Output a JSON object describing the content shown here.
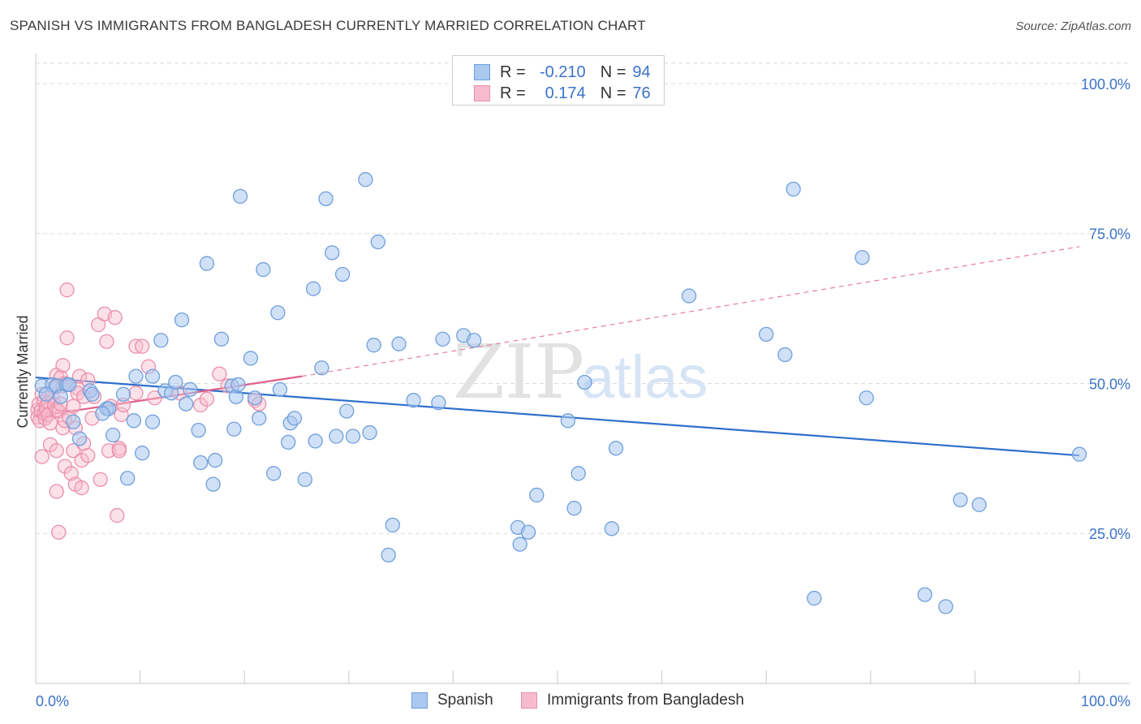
{
  "title": "SPANISH VS IMMIGRANTS FROM BANGLADESH CURRENTLY MARRIED CORRELATION CHART",
  "source": "Source: ZipAtlas.com",
  "watermark": {
    "part1": "ZIP",
    "part2": "atlas"
  },
  "colors": {
    "blue_fill": "#aac8f0",
    "blue_stroke": "#6f9fdc",
    "blue_line": "#2f6fcc",
    "pink_fill": "#f6bccd",
    "pink_stroke": "#ec8faa",
    "pink_line": "#e0608a",
    "axis_text": "#3b73c8",
    "grid": "#dadada"
  },
  "legend": {
    "rows": [
      {
        "r_label": "R =",
        "r_value": "-0.210",
        "n_label": "N =",
        "n_value": "94"
      },
      {
        "r_label": "R =",
        "r_value": "0.174",
        "n_label": "N =",
        "n_value": "76"
      }
    ]
  },
  "chart_data": {
    "type": "scatter",
    "title": "SPANISH VS IMMIGRANTS FROM BANGLADESH CURRENTLY MARRIED CORRELATION CHART",
    "xlabel": "",
    "ylabel": "Currently Married",
    "xlim": [
      0,
      100
    ],
    "ylim": [
      0,
      105
    ],
    "x_tick_labels": [
      "0.0%",
      "100.0%"
    ],
    "y_ticks": [
      25,
      50,
      75,
      100
    ],
    "y_tick_labels": [
      "25.0%",
      "50.0%",
      "75.0%",
      "100.0%"
    ],
    "grid": true,
    "legend_position": "top-center",
    "series": [
      {
        "name": "Spanish",
        "color": "#aac8f0",
        "r": -0.21,
        "n": 94,
        "trend": {
          "x": [
            0,
            100
          ],
          "y": [
            51.0,
            38.0
          ],
          "dashed_x": null
        },
        "points": [
          [
            0.6,
            49.6
          ],
          [
            1.6,
            49.8
          ],
          [
            2,
            49.6
          ],
          [
            2.4,
            47.8
          ],
          [
            3,
            49.8
          ],
          [
            3.6,
            43.6
          ],
          [
            4.2,
            40.8
          ],
          [
            5.2,
            48.8
          ],
          [
            5.4,
            48.2
          ],
          [
            6.8,
            45.8
          ],
          [
            7,
            45.8
          ],
          [
            7.4,
            41.4
          ],
          [
            8.4,
            48.2
          ],
          [
            8.8,
            34.2
          ],
          [
            9.4,
            43.8
          ],
          [
            9.6,
            51.2
          ],
          [
            10.2,
            38.4
          ],
          [
            11.2,
            51.2
          ],
          [
            11.2,
            43.6
          ],
          [
            12,
            57.2
          ],
          [
            12.4,
            48.8
          ],
          [
            13,
            48.4
          ],
          [
            13.4,
            50.2
          ],
          [
            14,
            60.6
          ],
          [
            14.4,
            46.6
          ],
          [
            14.8,
            49.0
          ],
          [
            15.6,
            42.2
          ],
          [
            15.8,
            36.8
          ],
          [
            16.4,
            70.0
          ],
          [
            17,
            33.2
          ],
          [
            17.2,
            37.2
          ],
          [
            17.8,
            57.4
          ],
          [
            18.8,
            49.6
          ],
          [
            19,
            42.4
          ],
          [
            19.2,
            47.8
          ],
          [
            19.6,
            81.2
          ],
          [
            20.6,
            54.2
          ],
          [
            21.0,
            47.6
          ],
          [
            21.4,
            44.2
          ],
          [
            21.8,
            69.0
          ],
          [
            22.8,
            35.0
          ],
          [
            23.2,
            61.8
          ],
          [
            23.4,
            49.0
          ],
          [
            24.2,
            40.2
          ],
          [
            24.4,
            43.4
          ],
          [
            24.8,
            44.2
          ],
          [
            25.8,
            34.0
          ],
          [
            26.6,
            65.8
          ],
          [
            26.8,
            40.4
          ],
          [
            27.4,
            52.6
          ],
          [
            27.8,
            80.8
          ],
          [
            28.4,
            71.8
          ],
          [
            28.8,
            41.2
          ],
          [
            29.4,
            68.2
          ],
          [
            29.8,
            45.4
          ],
          [
            30.4,
            41.2
          ],
          [
            31.6,
            84.0
          ],
          [
            32.0,
            41.8
          ],
          [
            32.4,
            56.4
          ],
          [
            32.8,
            73.6
          ],
          [
            33.8,
            21.4
          ],
          [
            34.2,
            26.4
          ],
          [
            34.8,
            56.6
          ],
          [
            36.2,
            47.2
          ],
          [
            38.6,
            46.8
          ],
          [
            39,
            57.4
          ],
          [
            41,
            58.0
          ],
          [
            42.0,
            57.2
          ],
          [
            46.2,
            26.0
          ],
          [
            46.4,
            23.2
          ],
          [
            47.2,
            25.2
          ],
          [
            48.0,
            31.4
          ],
          [
            51,
            43.8
          ],
          [
            51.6,
            29.2
          ],
          [
            52,
            35.0
          ],
          [
            52.6,
            50.2
          ],
          [
            55.2,
            25.8
          ],
          [
            55.6,
            39.2
          ],
          [
            62.6,
            64.6
          ],
          [
            70,
            58.2
          ],
          [
            71.8,
            54.8
          ],
          [
            72.6,
            82.4
          ],
          [
            74.6,
            14.2
          ],
          [
            79.2,
            71.0
          ],
          [
            79.6,
            47.6
          ],
          [
            85.2,
            14.8
          ],
          [
            87.2,
            12.8
          ],
          [
            88.6,
            30.6
          ],
          [
            90.4,
            29.8
          ],
          [
            100,
            38.2
          ],
          [
            1.0,
            48.2
          ],
          [
            3.2,
            49.8
          ],
          [
            6.4,
            45.0
          ],
          [
            19.4,
            49.8
          ]
        ]
      },
      {
        "name": "Immigrants from Bangladesh",
        "color": "#f6bccd",
        "r": 0.174,
        "n": 76,
        "trend": {
          "x": [
            0,
            25.5
          ],
          "y": [
            44.5,
            51.2
          ],
          "dashed_x": [
            25.5,
            100
          ],
          "dashed_y": [
            51.2,
            72.8
          ]
        },
        "points": [
          [
            0.2,
            45.6
          ],
          [
            0.2,
            44.4
          ],
          [
            0.3,
            46.6
          ],
          [
            0.4,
            43.8
          ],
          [
            0.5,
            45.4
          ],
          [
            0.6,
            48.2
          ],
          [
            0.6,
            37.8
          ],
          [
            0.8,
            47.0
          ],
          [
            0.8,
            45.0
          ],
          [
            0.9,
            44.2
          ],
          [
            1.0,
            46.2
          ],
          [
            1.0,
            45.6
          ],
          [
            1.2,
            46.8
          ],
          [
            1.2,
            44.8
          ],
          [
            1.4,
            39.8
          ],
          [
            1.4,
            43.4
          ],
          [
            1.6,
            48.0
          ],
          [
            1.8,
            46.4
          ],
          [
            1.8,
            49.4
          ],
          [
            2.0,
            51.4
          ],
          [
            2.0,
            45.6
          ],
          [
            2.0,
            38.8
          ],
          [
            2.0,
            32.0
          ],
          [
            2.2,
            45.4
          ],
          [
            2.2,
            25.2
          ],
          [
            2.4,
            51.0
          ],
          [
            2.4,
            46.6
          ],
          [
            2.6,
            53.0
          ],
          [
            2.6,
            49.6
          ],
          [
            2.6,
            42.6
          ],
          [
            2.8,
            36.2
          ],
          [
            2.8,
            50.0
          ],
          [
            2.8,
            43.8
          ],
          [
            3.0,
            65.6
          ],
          [
            3.0,
            57.6
          ],
          [
            3.2,
            44.4
          ],
          [
            3.4,
            35.0
          ],
          [
            3.6,
            38.8
          ],
          [
            3.6,
            46.2
          ],
          [
            3.8,
            33.2
          ],
          [
            3.8,
            42.6
          ],
          [
            4.0,
            49.2
          ],
          [
            4.0,
            48.4
          ],
          [
            4.2,
            51.2
          ],
          [
            4.4,
            37.2
          ],
          [
            4.4,
            32.6
          ],
          [
            4.6,
            40.0
          ],
          [
            4.6,
            47.8
          ],
          [
            5.0,
            50.6
          ],
          [
            5.0,
            38.0
          ],
          [
            5.4,
            44.2
          ],
          [
            5.6,
            47.8
          ],
          [
            6.0,
            59.8
          ],
          [
            6.2,
            34.0
          ],
          [
            6.6,
            61.6
          ],
          [
            6.8,
            57.0
          ],
          [
            7.0,
            38.8
          ],
          [
            7.2,
            46.2
          ],
          [
            7.6,
            61.0
          ],
          [
            7.8,
            28.0
          ],
          [
            8.0,
            39.2
          ],
          [
            8.0,
            38.8
          ],
          [
            8.2,
            44.8
          ],
          [
            8.4,
            46.4
          ],
          [
            9.6,
            48.4
          ],
          [
            9.6,
            56.2
          ],
          [
            10.2,
            56.2
          ],
          [
            10.8,
            52.8
          ],
          [
            11.4,
            47.6
          ],
          [
            13.8,
            48.4
          ],
          [
            15.8,
            46.4
          ],
          [
            16.4,
            47.4
          ],
          [
            17.6,
            51.6
          ],
          [
            18.4,
            49.6
          ],
          [
            21.0,
            47.2
          ],
          [
            21.4,
            46.6
          ]
        ]
      }
    ]
  },
  "bottom_legend": {
    "items": [
      "Spanish",
      "Immigrants from Bangladesh"
    ]
  }
}
